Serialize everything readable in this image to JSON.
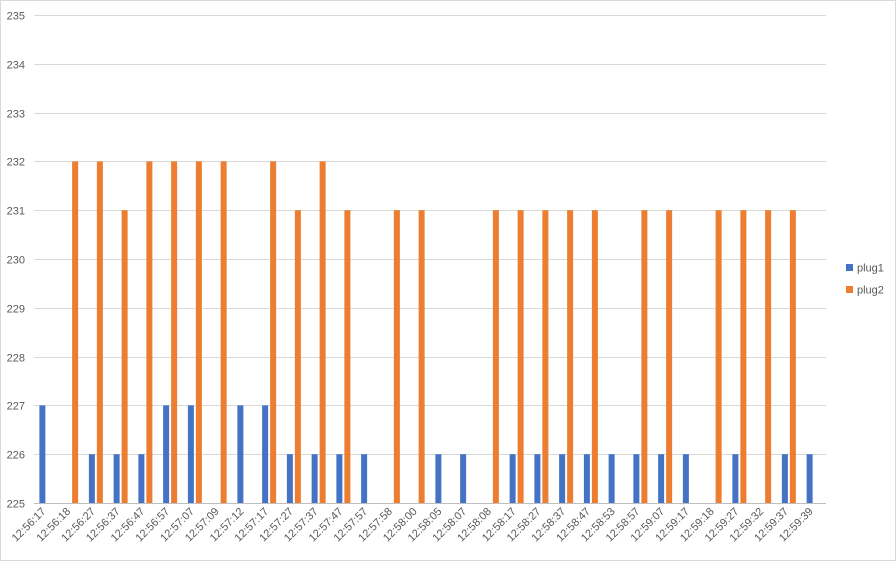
{
  "chart_data": {
    "type": "bar",
    "title": "",
    "xlabel": "",
    "ylabel": "",
    "ylim": [
      225,
      235
    ],
    "yticks": [
      225,
      226,
      227,
      228,
      229,
      230,
      231,
      232,
      233,
      234,
      235
    ],
    "grid": true,
    "legend_position": "right",
    "categories": [
      "12:56:17",
      "12:56:18",
      "12:56:27",
      "12:56:37",
      "12:56:47",
      "12:56:57",
      "12:57:07",
      "12:57:09",
      "12:57:12",
      "12:57:17",
      "12:57:27",
      "12:57:37",
      "12:57:47",
      "12:57:57",
      "12:57:58",
      "12:58:00",
      "12:58:05",
      "12:58:07",
      "12:58:08",
      "12:58:17",
      "12:58:27",
      "12:58:37",
      "12:58:47",
      "12:58:53",
      "12:58:57",
      "12:59:07",
      "12:59:17",
      "12:59:18",
      "12:59:27",
      "12:59:32",
      "12:59:37",
      "12:59:39"
    ],
    "series": [
      {
        "name": "plug1",
        "color": "#4472C4",
        "values": [
          227,
          null,
          226,
          226,
          226,
          227,
          227,
          null,
          227,
          227,
          226,
          226,
          226,
          226,
          null,
          null,
          226,
          226,
          null,
          226,
          226,
          226,
          226,
          226,
          226,
          226,
          226,
          null,
          226,
          null,
          226,
          226
        ]
      },
      {
        "name": "plug2",
        "color": "#ED7D31",
        "values": [
          null,
          232,
          232,
          231,
          232,
          232,
          232,
          232,
          null,
          232,
          231,
          232,
          231,
          null,
          231,
          231,
          null,
          null,
          231,
          231,
          231,
          231,
          231,
          null,
          231,
          231,
          null,
          231,
          231,
          231,
          231,
          null
        ]
      }
    ]
  }
}
